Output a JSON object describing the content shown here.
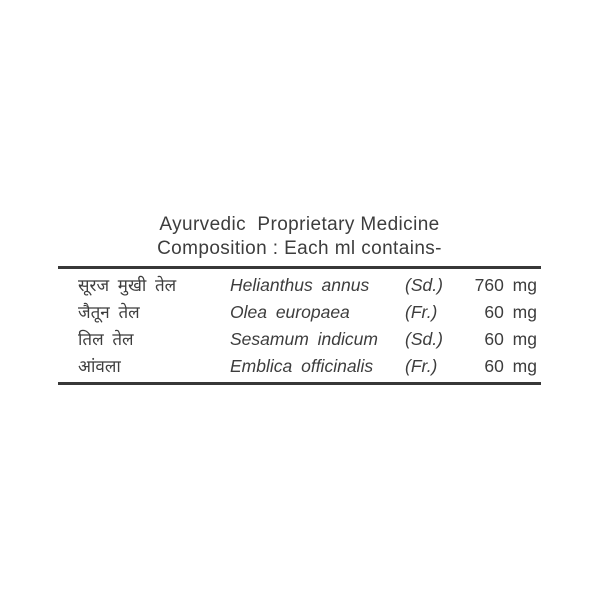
{
  "label": {
    "title": "Ayurvedic  Proprietary Medicine",
    "subtitle": "Composition : Each ml contains-",
    "colors": {
      "background": "#ffffff",
      "text": "#3d3d3d",
      "rule": "#383838"
    },
    "composition": {
      "rows": [
        {
          "local_name": "सूरज मुखी तेल",
          "botanical_name": "Helianthus annus",
          "plant_part": "(Sd.)",
          "quantity": "760 mg"
        },
        {
          "local_name": "जैतून तेल",
          "botanical_name": "Olea europaea",
          "plant_part": "(Fr.)",
          "quantity": "60 mg"
        },
        {
          "local_name": "तिल तेल",
          "botanical_name": "Sesamum indicum",
          "plant_part": "(Sd.)",
          "quantity": "60 mg"
        },
        {
          "local_name": "आंवला",
          "botanical_name": "Emblica officinalis",
          "plant_part": "(Fr.)",
          "quantity": "60 mg"
        }
      ]
    }
  }
}
